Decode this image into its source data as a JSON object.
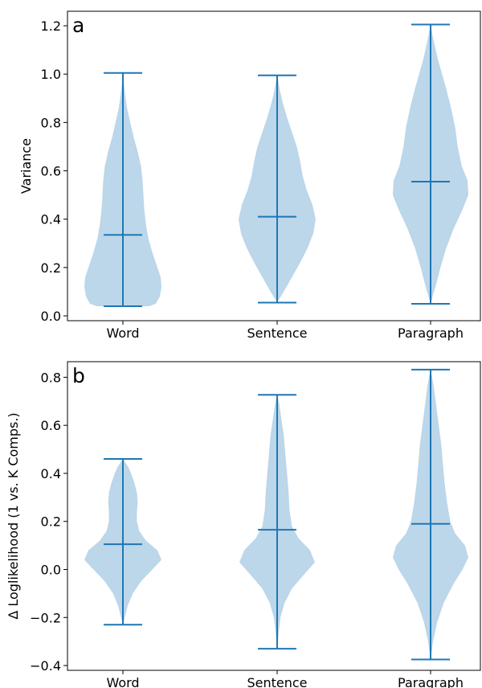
{
  "chart_data": [
    {
      "type": "violin",
      "panel_label": "a",
      "ylabel": "Variance",
      "categories": [
        "Word",
        "Sentence",
        "Paragraph"
      ],
      "ylim": [
        -0.02,
        1.26
      ],
      "yticks": [
        0.0,
        0.2,
        0.4,
        0.6,
        0.8,
        1.0,
        1.2
      ],
      "ytick_labels": [
        "0.0",
        "0.2",
        "0.4",
        "0.6",
        "0.8",
        "1.0",
        "1.2"
      ],
      "color": "#1f77b4",
      "fill_color": "#bcd6ea",
      "violins": [
        {
          "category": "Word",
          "min": 0.04,
          "mean": 0.335,
          "max": 1.005,
          "profile": [
            [
              0.04,
              0.32
            ],
            [
              0.05,
              0.4
            ],
            [
              0.08,
              0.45
            ],
            [
              0.12,
              0.47
            ],
            [
              0.16,
              0.46
            ],
            [
              0.2,
              0.42
            ],
            [
              0.26,
              0.36
            ],
            [
              0.32,
              0.31
            ],
            [
              0.38,
              0.28
            ],
            [
              0.44,
              0.26
            ],
            [
              0.5,
              0.25
            ],
            [
              0.56,
              0.24
            ],
            [
              0.62,
              0.22
            ],
            [
              0.68,
              0.18
            ],
            [
              0.74,
              0.13
            ],
            [
              0.8,
              0.09
            ],
            [
              0.86,
              0.05
            ],
            [
              0.92,
              0.025
            ],
            [
              0.97,
              0.01
            ],
            [
              1.005,
              0.0
            ]
          ]
        },
        {
          "category": "Sentence",
          "min": 0.055,
          "mean": 0.41,
          "max": 0.995,
          "profile": [
            [
              0.055,
              0.0
            ],
            [
              0.1,
              0.08
            ],
            [
              0.16,
              0.18
            ],
            [
              0.22,
              0.28
            ],
            [
              0.28,
              0.37
            ],
            [
              0.34,
              0.44
            ],
            [
              0.4,
              0.47
            ],
            [
              0.46,
              0.43
            ],
            [
              0.52,
              0.36
            ],
            [
              0.58,
              0.31
            ],
            [
              0.64,
              0.28
            ],
            [
              0.7,
              0.24
            ],
            [
              0.76,
              0.18
            ],
            [
              0.82,
              0.12
            ],
            [
              0.88,
              0.07
            ],
            [
              0.93,
              0.035
            ],
            [
              0.97,
              0.015
            ],
            [
              0.995,
              0.0
            ]
          ]
        },
        {
          "category": "Paragraph",
          "min": 0.05,
          "mean": 0.555,
          "max": 1.205,
          "profile": [
            [
              0.05,
              0.0
            ],
            [
              0.12,
              0.06
            ],
            [
              0.2,
              0.12
            ],
            [
              0.28,
              0.19
            ],
            [
              0.36,
              0.28
            ],
            [
              0.44,
              0.39
            ],
            [
              0.5,
              0.46
            ],
            [
              0.56,
              0.45
            ],
            [
              0.62,
              0.38
            ],
            [
              0.7,
              0.33
            ],
            [
              0.78,
              0.3
            ],
            [
              0.86,
              0.25
            ],
            [
              0.94,
              0.19
            ],
            [
              1.0,
              0.14
            ],
            [
              1.06,
              0.09
            ],
            [
              1.12,
              0.05
            ],
            [
              1.17,
              0.02
            ],
            [
              1.205,
              0.0
            ]
          ]
        }
      ]
    },
    {
      "type": "violin",
      "panel_label": "b",
      "ylabel": "Δ Loglikelihood (1 vs. K Comps.)",
      "categories": [
        "Word",
        "Sentence",
        "Paragraph"
      ],
      "ylim": [
        -0.42,
        0.865
      ],
      "yticks": [
        -0.4,
        -0.2,
        0.0,
        0.2,
        0.4,
        0.6,
        0.8
      ],
      "ytick_labels": [
        "−0.4",
        "−0.2",
        "0.0",
        "0.2",
        "0.4",
        "0.6",
        "0.8"
      ],
      "color": "#1f77b4",
      "fill_color": "#bcd6ea",
      "violins": [
        {
          "category": "Word",
          "min": -0.23,
          "mean": 0.105,
          "max": 0.46,
          "profile": [
            [
              -0.23,
              0.0
            ],
            [
              -0.19,
              0.03
            ],
            [
              -0.15,
              0.06
            ],
            [
              -0.1,
              0.12
            ],
            [
              -0.05,
              0.22
            ],
            [
              0.0,
              0.36
            ],
            [
              0.04,
              0.47
            ],
            [
              0.08,
              0.42
            ],
            [
              0.12,
              0.28
            ],
            [
              0.16,
              0.2
            ],
            [
              0.2,
              0.17
            ],
            [
              0.24,
              0.17
            ],
            [
              0.28,
              0.18
            ],
            [
              0.32,
              0.17
            ],
            [
              0.36,
              0.14
            ],
            [
              0.4,
              0.1
            ],
            [
              0.43,
              0.06
            ],
            [
              0.46,
              0.0
            ]
          ]
        },
        {
          "category": "Sentence",
          "min": -0.33,
          "mean": 0.165,
          "max": 0.727,
          "profile": [
            [
              -0.33,
              0.0
            ],
            [
              -0.26,
              0.02
            ],
            [
              -0.2,
              0.04
            ],
            [
              -0.14,
              0.09
            ],
            [
              -0.08,
              0.18
            ],
            [
              -0.02,
              0.33
            ],
            [
              0.03,
              0.46
            ],
            [
              0.08,
              0.4
            ],
            [
              0.13,
              0.26
            ],
            [
              0.18,
              0.18
            ],
            [
              0.25,
              0.15
            ],
            [
              0.32,
              0.14
            ],
            [
              0.4,
              0.12
            ],
            [
              0.48,
              0.1
            ],
            [
              0.56,
              0.08
            ],
            [
              0.63,
              0.05
            ],
            [
              0.69,
              0.025
            ],
            [
              0.727,
              0.0
            ]
          ]
        },
        {
          "category": "Paragraph",
          "min": -0.375,
          "mean": 0.19,
          "max": 0.832,
          "profile": [
            [
              -0.375,
              0.0
            ],
            [
              -0.3,
              0.03
            ],
            [
              -0.22,
              0.08
            ],
            [
              -0.14,
              0.16
            ],
            [
              -0.06,
              0.28
            ],
            [
              0.0,
              0.39
            ],
            [
              0.05,
              0.46
            ],
            [
              0.1,
              0.42
            ],
            [
              0.15,
              0.3
            ],
            [
              0.2,
              0.24
            ],
            [
              0.28,
              0.2
            ],
            [
              0.36,
              0.17
            ],
            [
              0.44,
              0.15
            ],
            [
              0.52,
              0.13
            ],
            [
              0.6,
              0.1
            ],
            [
              0.68,
              0.07
            ],
            [
              0.76,
              0.04
            ],
            [
              0.8,
              0.02
            ],
            [
              0.832,
              0.0
            ]
          ]
        }
      ]
    }
  ]
}
